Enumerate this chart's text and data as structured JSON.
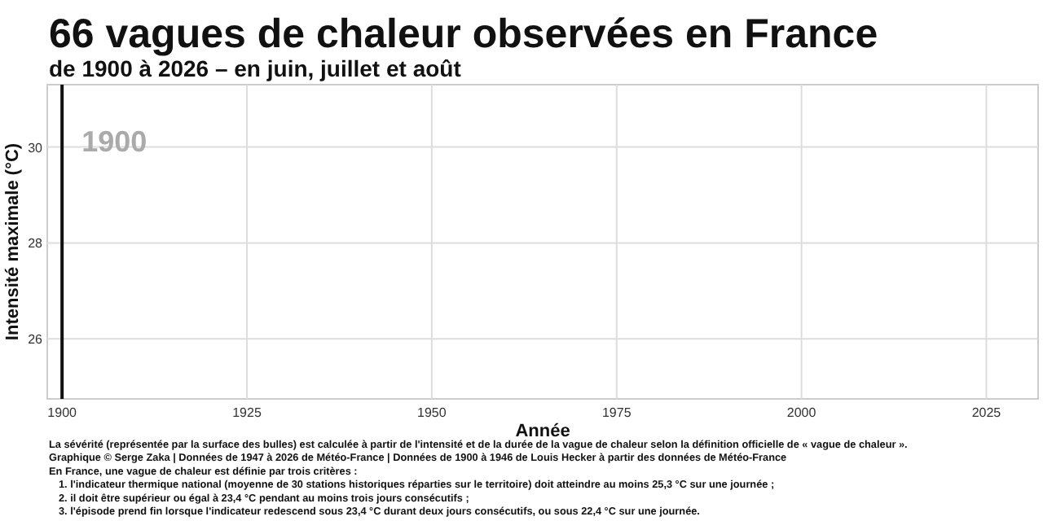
{
  "chart_data": {
    "type": "bubble",
    "title": "66 vagues de chaleur observées en France",
    "subtitle": "de 1900 à 2026 – en juin, juillet et août",
    "xlabel": "Année",
    "ylabel": "Intensité maximale (°C)",
    "xlim": [
      1898,
      2032
    ],
    "xticks": [
      1900,
      1925,
      1950,
      1975,
      2000,
      2025
    ],
    "ylim": [
      24.75,
      31.3
    ],
    "yticks": [
      26,
      28,
      30
    ],
    "grid": true,
    "ref_lines": [
      {
        "axis": "x",
        "value": 1900,
        "label": "1900",
        "color": "#111111"
      }
    ],
    "annotations": [
      "La sévérité (représentée par la surface des bulles) est calculée à partir de l'intensité et de la durée de la vague de chaleur selon la définition officielle de « vague de chaleur ».",
      "Graphique © Serge Zaka | Données de 1947 à 2026 de Météo-France | Données de 1900 à 1946 de Louis Hecker à partir des données de Météo-France",
      "En France, une vague de chaleur est définie par trois critères :",
      "1. l'indicateur thermique national (moyenne de 30 stations historiques réparties sur le territoire) doit atteindre au moins 25,3 °C sur une journée ;",
      "2. il doit être supérieur ou égal à 23,4 °C pendant au moins trois jours consécutifs ;",
      "3. l'épisode prend fin lorsque l'indicateur redescend sous 23,4 °C durant deux jours consécutifs, ou sous 22,4 °C sur une journée."
    ]
  }
}
